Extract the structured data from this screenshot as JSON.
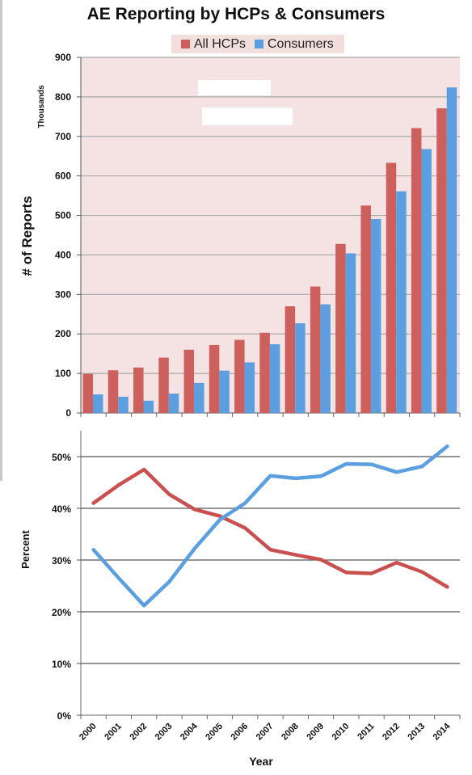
{
  "chart_data": [
    {
      "type": "bar",
      "title": "AE Reporting by HCPs & Consumers",
      "ylabel": "# of Reports",
      "yunit": "Thousands",
      "ylim": [
        0,
        900
      ],
      "yticks": [
        "0",
        "100",
        "200",
        "300",
        "400",
        "500",
        "600",
        "700",
        "800",
        "900"
      ],
      "grid": true,
      "legend_position": "top",
      "categories": [
        "2000",
        "2001",
        "2002",
        "2003",
        "2004",
        "2005",
        "2006",
        "2007",
        "2008",
        "2009",
        "2010",
        "2011",
        "2012",
        "2013",
        "2014"
      ],
      "series": [
        {
          "name": "All HCPs",
          "color": "#cd5f5c",
          "values": [
            99,
            108,
            115,
            140,
            160,
            172,
            185,
            203,
            270,
            320,
            428,
            525,
            633,
            721,
            771
          ]
        },
        {
          "name": "Consumers",
          "color": "#5b9fe0",
          "values": [
            47,
            41,
            31,
            49,
            76,
            107,
            128,
            174,
            227,
            275,
            404,
            491,
            561,
            668,
            824
          ]
        }
      ]
    },
    {
      "type": "line",
      "ylabel": "Percent",
      "xlabel": "Year",
      "ylim": [
        0,
        55
      ],
      "yticks": [
        0,
        10,
        20,
        30,
        40,
        50
      ],
      "yticklabels": [
        "0%",
        "10%",
        "20%",
        "30%",
        "40%",
        "50%"
      ],
      "grid": true,
      "x": [
        "2000",
        "2001",
        "2002",
        "2003",
        "2004",
        "2005",
        "2006",
        "2007",
        "2008",
        "2009",
        "2010",
        "2011",
        "2012",
        "2013",
        "2014"
      ],
      "series": [
        {
          "name": "All HCPs",
          "color": "#c9504f",
          "values": [
            41,
            44.5,
            47.5,
            42.7,
            39.8,
            38.5,
            36.2,
            32,
            31,
            30.1,
            27.6,
            27.4,
            29.5,
            27.7,
            24.8
          ]
        },
        {
          "name": "Consumers",
          "color": "#5b9fe0",
          "values": [
            32,
            26.5,
            21.2,
            25.8,
            32.2,
            37.8,
            41,
            46.3,
            45.8,
            46.2,
            48.6,
            48.5,
            47,
            48.1,
            52
          ]
        }
      ]
    }
  ]
}
